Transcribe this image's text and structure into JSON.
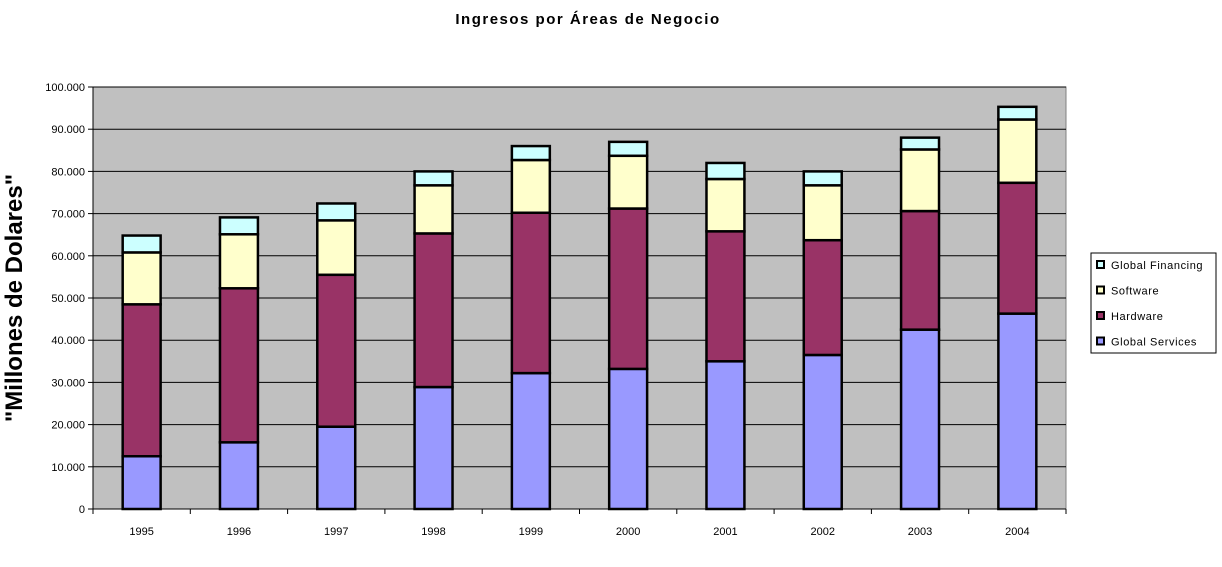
{
  "chart_data": {
    "type": "bar",
    "stacked": true,
    "title": "Ingresos por Áreas de Negocio",
    "ylabel": "\"Millones de Dolares\"",
    "xlabel": "",
    "ylim": [
      0,
      100000
    ],
    "yticks": [
      "0",
      "10.000",
      "20.000",
      "30.000",
      "40.000",
      "50.000",
      "60.000",
      "70.000",
      "80.000",
      "90.000",
      "100.000"
    ],
    "categories": [
      "1995",
      "1996",
      "1997",
      "1998",
      "1999",
      "2000",
      "2001",
      "2002",
      "2003",
      "2004"
    ],
    "series": [
      {
        "name": "Global Services",
        "color": "#9999ff",
        "values": [
          12500,
          15800,
          19500,
          28900,
          32200,
          33200,
          35000,
          36500,
          42500,
          46300
        ]
      },
      {
        "name": "Hardware",
        "color": "#993366",
        "values": [
          36000,
          36500,
          36000,
          36400,
          38000,
          38000,
          30800,
          27200,
          28100,
          31000
        ]
      },
      {
        "name": "Software",
        "color": "#ffffcc",
        "values": [
          12300,
          12800,
          12900,
          11400,
          12500,
          12500,
          12400,
          13000,
          14600,
          15000
        ]
      },
      {
        "name": "Global Financing",
        "color": "#ccffff",
        "values": [
          4000,
          4000,
          4000,
          3300,
          3300,
          3300,
          3800,
          3300,
          2800,
          3000
        ]
      }
    ],
    "legend_order": [
      "Global Financing",
      "Software",
      "Hardware",
      "Global Services"
    ],
    "legend_position": "right",
    "grid": true,
    "plot_background": "#c0c0c0"
  }
}
